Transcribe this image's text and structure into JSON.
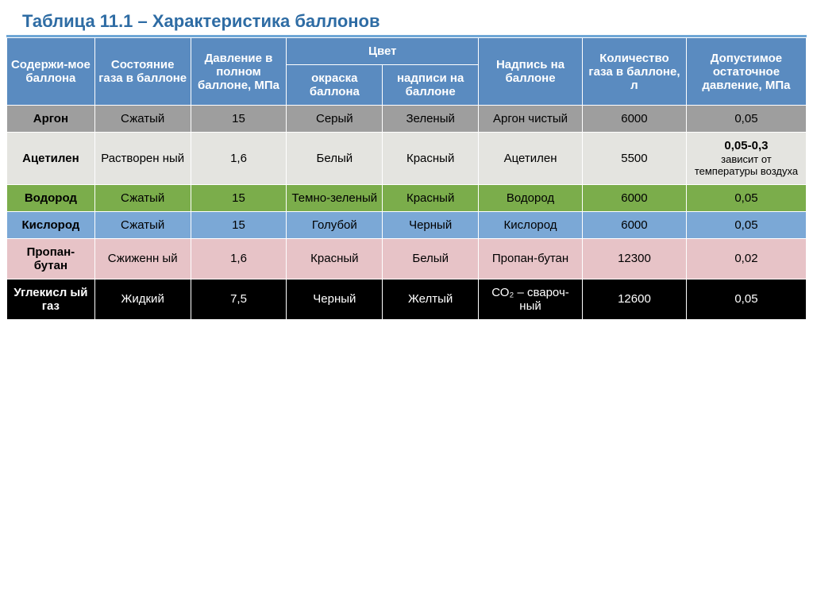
{
  "title": "Таблица 11.1 – Характеристика баллонов",
  "title_color": "#2e6ca4",
  "title_underline_color": "#6fa7d6",
  "title_fontsize": 22,
  "header_bg": "#5a8bc0",
  "header_sub_bg": "#5a8bc0",
  "header_text_color": "#ffffff",
  "cell_fontsize": 15,
  "columns": {
    "content": "Содержи-мое баллона",
    "state": "Состояние газа в баллоне",
    "pressure": "Давление в полном баллоне, МПа",
    "color": "Цвет",
    "color_paint": "окраска баллона",
    "color_label": "надписи на баллоне",
    "inscription": "Надпись на баллоне",
    "qty": "Количество газа в баллоне, л",
    "residual": "Допустимое остаточное давление, МПа"
  },
  "rows": [
    {
      "bg": "#9e9e9e",
      "fg": "#000000",
      "cells": [
        "Аргон",
        "Сжатый",
        "15",
        "Серый",
        "Зеленый",
        "Аргон чистый",
        "6000",
        "0,05"
      ],
      "note": ""
    },
    {
      "bg": "#e4e4e0",
      "fg": "#000000",
      "cells": [
        "Ацетилен",
        "Растворен ный",
        "1,6",
        "Белый",
        "Красный",
        "Ацетилен",
        "5500",
        "0,05-0,3"
      ],
      "note": "зависит от температуры воздуха"
    },
    {
      "bg": "#7bad4b",
      "fg": "#000000",
      "cells": [
        "Водород",
        "Сжатый",
        "15",
        "Темно-зеленый",
        "Красный",
        "Водород",
        "6000",
        "0,05"
      ],
      "note": ""
    },
    {
      "bg": "#7ba8d6",
      "fg": "#000000",
      "cells": [
        "Кислород",
        "Сжатый",
        "15",
        "Голубой",
        "Черный",
        "Кислород",
        "6000",
        "0,05"
      ],
      "note": ""
    },
    {
      "bg": "#e7c3c7",
      "fg": "#000000",
      "cells": [
        "Пропан-бутан",
        "Сжиженн ый",
        "1,6",
        "Красный",
        "Белый",
        "Пропан-бутан",
        "12300",
        "0,02"
      ],
      "note": ""
    },
    {
      "bg": "#000000",
      "fg": "#ffffff",
      "cells": [
        "Углекисл ый газ",
        "Жидкий",
        "7,5",
        "Черный",
        "Желтый",
        "СО₂ – свароч-ный",
        "12600",
        "0,05"
      ],
      "note": ""
    }
  ]
}
